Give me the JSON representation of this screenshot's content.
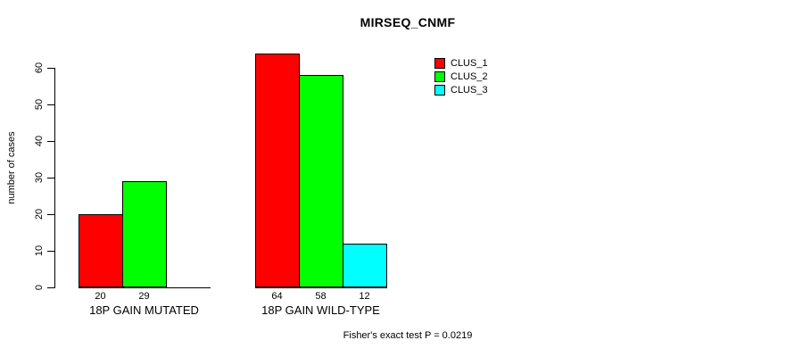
{
  "chart_data": {
    "type": "bar",
    "title": "MIRSEQ_CNMF",
    "xlabel": "",
    "ylabel": "number of cases",
    "categories": [
      "18P GAIN MUTATED",
      "18P GAIN WILD-TYPE"
    ],
    "series": [
      {
        "name": "CLUS_1",
        "color": "#ff0000",
        "values": [
          20,
          64
        ]
      },
      {
        "name": "CLUS_2",
        "color": "#00ff00",
        "values": [
          29,
          58
        ]
      },
      {
        "name": "CLUS_3",
        "color": "#00ffff",
        "values": [
          0,
          12
        ]
      }
    ],
    "bar_value_labels": [
      [
        "20",
        "29",
        ""
      ],
      [
        "64",
        "58",
        "12"
      ]
    ],
    "ylim": [
      0,
      60
    ],
    "yticks": [
      0,
      10,
      20,
      30,
      40,
      50,
      60
    ],
    "grid": false,
    "legend": {
      "entries": [
        "CLUS_1",
        "CLUS_2",
        "CLUS_3"
      ],
      "position": "top-right-inside"
    },
    "annotation": "Fisher's exact test P = 0.0219",
    "axis_color": "#000000",
    "background_color": "#ffffff"
  }
}
